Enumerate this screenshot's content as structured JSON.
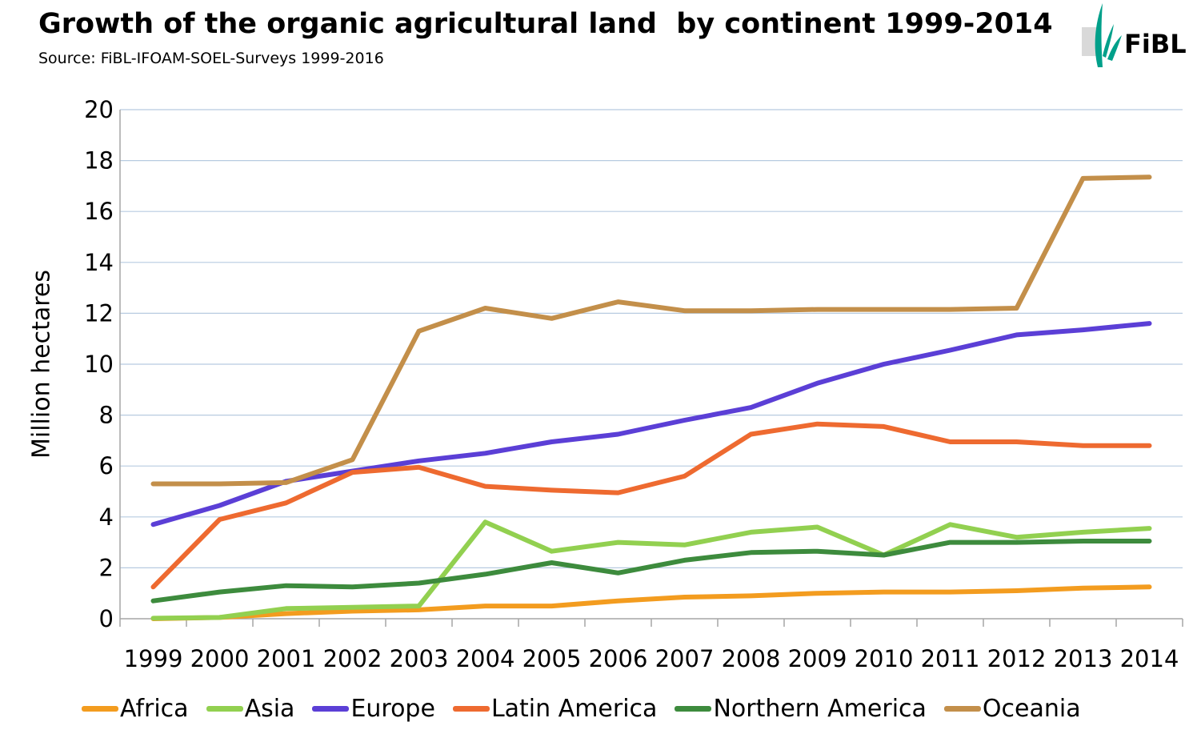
{
  "header": {
    "title": "Growth of the organic agricultural land  by continent 1999-2014",
    "source": "Source: FiBL-IFOAM-SOEL-Surveys 1999-2016",
    "logo_text": "FiBL",
    "logo_color": "#00a08a"
  },
  "chart_data": {
    "type": "line",
    "title": "Growth of the organic agricultural land  by continent 1999-2014",
    "subtitle": "Source: FiBL-IFOAM-SOEL-Surveys 1999-2016",
    "xlabel": "",
    "ylabel": "Million hectares",
    "ylim": [
      0,
      20
    ],
    "yticks": [
      0,
      2,
      4,
      6,
      8,
      10,
      12,
      14,
      16,
      18,
      20
    ],
    "grid": true,
    "legend_position": "bottom",
    "categories": [
      "1999",
      "2000",
      "2001",
      "2002",
      "2003",
      "2004",
      "2005",
      "2006",
      "2007",
      "2008",
      "2009",
      "2010",
      "2011",
      "2012",
      "2013",
      "2014"
    ],
    "series": [
      {
        "name": "Africa",
        "color": "#f39c1f",
        "values": [
          0.0,
          0.05,
          0.2,
          0.3,
          0.35,
          0.5,
          0.5,
          0.7,
          0.85,
          0.9,
          1.0,
          1.05,
          1.05,
          1.1,
          1.2,
          1.25
        ]
      },
      {
        "name": "Asia",
        "color": "#92d050",
        "values": [
          0.02,
          0.05,
          0.4,
          0.45,
          0.5,
          3.8,
          2.65,
          3.0,
          2.9,
          3.4,
          3.6,
          2.5,
          3.7,
          3.2,
          3.4,
          3.55
        ]
      },
      {
        "name": "Europe",
        "color": "#5b3fd6",
        "values": [
          3.7,
          4.45,
          5.4,
          5.8,
          6.2,
          6.5,
          6.95,
          7.25,
          7.8,
          8.3,
          9.25,
          10.0,
          10.55,
          11.15,
          11.35,
          11.6
        ]
      },
      {
        "name": "Latin America",
        "color": "#ee6a30",
        "values": [
          1.25,
          3.9,
          4.55,
          5.75,
          5.95,
          5.2,
          5.05,
          4.95,
          5.6,
          7.25,
          7.65,
          7.55,
          6.95,
          6.95,
          6.8,
          6.8
        ]
      },
      {
        "name": "Northern America",
        "color": "#3d8b3d",
        "values": [
          0.7,
          1.05,
          1.3,
          1.25,
          1.4,
          1.75,
          2.2,
          1.8,
          2.3,
          2.6,
          2.65,
          2.5,
          3.0,
          3.0,
          3.05,
          3.05
        ]
      },
      {
        "name": "Oceania",
        "color": "#c38f4a",
        "values": [
          5.3,
          5.3,
          5.35,
          6.25,
          11.3,
          12.2,
          11.8,
          12.45,
          12.1,
          12.1,
          12.15,
          12.15,
          12.15,
          12.2,
          17.3,
          17.35
        ]
      }
    ]
  }
}
